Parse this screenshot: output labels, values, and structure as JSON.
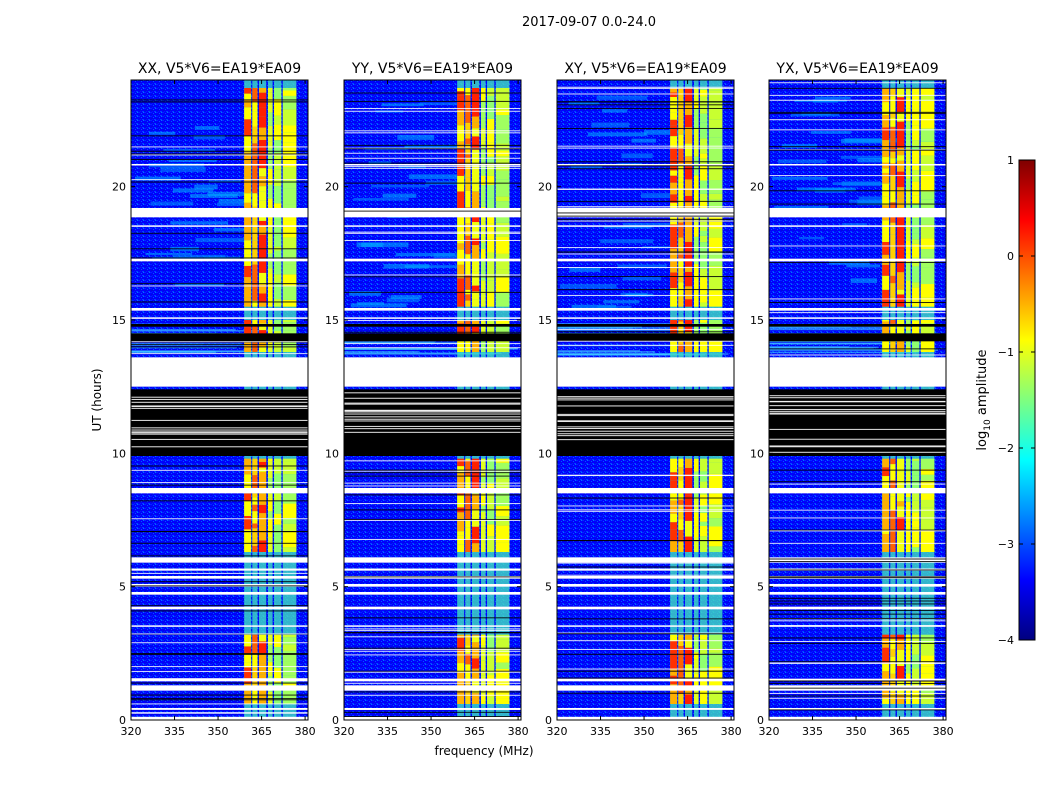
{
  "figure_title": "2017-09-07 0.0-24.0",
  "chart_data": [
    {
      "type": "heatmap",
      "title": "XX, V5*V6=EA19*EA09",
      "polarization": "XX",
      "xlabel": "frequency (MHz)",
      "ylabel": "UT (hours)",
      "xlim": [
        320,
        381
      ],
      "ylim": [
        0,
        24
      ],
      "xticks": [
        "320",
        "335",
        "350",
        "365",
        "380"
      ],
      "yticks": [
        "0",
        "5",
        "10",
        "15",
        "20"
      ],
      "active_band_mhz": [
        359,
        377
      ],
      "strong_rfi_intervals_ut": [
        [
          0.6,
          3.2
        ],
        [
          6.3,
          8.5
        ],
        [
          8.7,
          9.8
        ],
        [
          13.8,
          15.0
        ],
        [
          15.5,
          23.7
        ]
      ]
    },
    {
      "type": "heatmap",
      "title": "YY, V5*V6=EA19*EA09",
      "polarization": "YY",
      "xlabel": "frequency (MHz)",
      "ylabel": "",
      "xlim": [
        320,
        381
      ],
      "ylim": [
        0,
        24
      ],
      "xticks": [
        "320",
        "335",
        "350",
        "365",
        "380"
      ],
      "yticks": [
        "0",
        "5",
        "10",
        "15",
        "20"
      ],
      "active_band_mhz": [
        359,
        377
      ],
      "strong_rfi_intervals_ut": [
        [
          0.6,
          3.2
        ],
        [
          6.3,
          8.5
        ],
        [
          8.7,
          9.8
        ],
        [
          13.8,
          15.0
        ],
        [
          15.5,
          23.7
        ]
      ]
    },
    {
      "type": "heatmap",
      "title": "XY, V5*V6=EA19*EA09",
      "polarization": "XY",
      "xlabel": "",
      "ylabel": "",
      "xlim": [
        320,
        381
      ],
      "ylim": [
        0,
        24
      ],
      "xticks": [
        "320",
        "335",
        "350",
        "365",
        "380"
      ],
      "yticks": [
        "0",
        "5",
        "10",
        "15",
        "20"
      ],
      "active_band_mhz": [
        359,
        377
      ],
      "strong_rfi_intervals_ut": [
        [
          0.6,
          3.2
        ],
        [
          6.3,
          8.5
        ],
        [
          8.7,
          9.8
        ],
        [
          13.8,
          15.0
        ],
        [
          15.5,
          23.7
        ]
      ]
    },
    {
      "type": "heatmap",
      "title": "YX, V5*V6=EA19*EA09",
      "polarization": "YX",
      "xlabel": "",
      "ylabel": "",
      "xlim": [
        320,
        381
      ],
      "ylim": [
        0,
        24
      ],
      "xticks": [
        "320",
        "335",
        "350",
        "365",
        "380"
      ],
      "yticks": [
        "0",
        "5",
        "10",
        "15",
        "20"
      ],
      "active_band_mhz": [
        359,
        377
      ],
      "strong_rfi_intervals_ut": [
        [
          0.6,
          3.2
        ],
        [
          6.3,
          8.5
        ],
        [
          8.7,
          9.8
        ],
        [
          13.8,
          15.0
        ],
        [
          15.5,
          23.7
        ]
      ]
    }
  ],
  "colorbar": {
    "label_prefix": "log",
    "label_sub": "10",
    "label_suffix": " amplitude",
    "range": [
      -4,
      1
    ],
    "ticks": [
      "1",
      "0",
      "−1",
      "−2",
      "−3",
      "−4"
    ],
    "colormap": "jet",
    "colors": [
      "#00007f",
      "#0000ff",
      "#007fff",
      "#00ffff",
      "#7fff7f",
      "#ffff00",
      "#ff7f00",
      "#ff0000",
      "#7f0000"
    ]
  },
  "flagged_gaps_ut": [
    [
      0.0,
      0.12
    ],
    [
      0.38,
      0.45
    ],
    [
      1.1,
      1.3
    ],
    [
      1.45,
      1.55
    ],
    [
      3.5,
      3.55
    ],
    [
      4.15,
      4.25
    ],
    [
      4.7,
      4.8
    ],
    [
      5.0,
      5.1
    ],
    [
      5.3,
      5.4
    ],
    [
      5.6,
      5.68
    ],
    [
      5.9,
      6.1
    ],
    [
      8.5,
      8.7
    ],
    [
      12.5,
      13.6
    ],
    [
      15.05,
      15.1
    ],
    [
      15.35,
      15.45
    ],
    [
      17.2,
      17.3
    ],
    [
      18.5,
      18.55
    ],
    [
      18.85,
      19.2
    ],
    [
      20.8,
      20.85
    ]
  ],
  "no_data_intervals_ut": [
    [
      9.9,
      12.4
    ],
    [
      14.2,
      14.5
    ],
    [
      14.75,
      14.85
    ]
  ]
}
